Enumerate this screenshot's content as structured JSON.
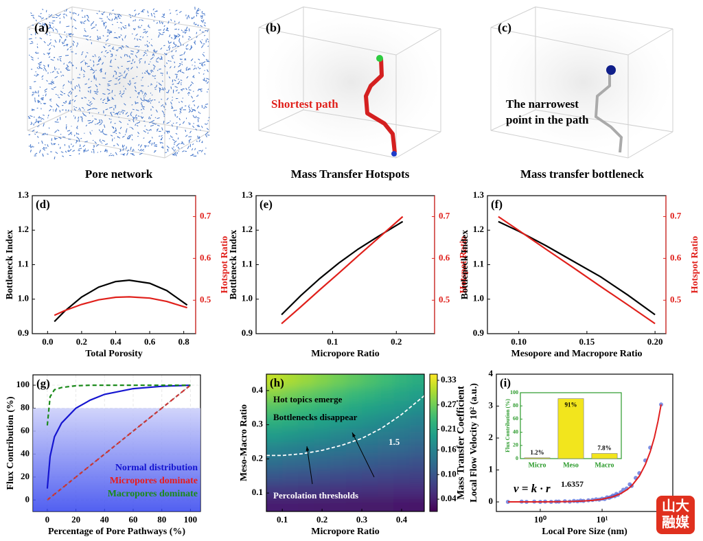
{
  "images": [
    {
      "label": "(a)",
      "caption": "Pore network"
    },
    {
      "label": "(b)",
      "caption": "Mass Transfer Hotspots",
      "annotation": "Shortest path"
    },
    {
      "label": "(c)",
      "caption": "Mass transfer bottleneck",
      "annotation": [
        "The narrowest",
        "point in the path"
      ]
    }
  ],
  "chart_data": [
    {
      "type": "line",
      "label": "(d)",
      "x_label": "Total Porosity",
      "y_label": "Bottleneck Index",
      "y2_label": "Hotspot Ratio",
      "y2_color": "#e0201b",
      "xlim": [
        -0.09,
        0.87
      ],
      "xticks": [
        {
          "value": 0,
          "label": "0.0"
        },
        0.2,
        0.4,
        0.6,
        0.8
      ],
      "ylim": [
        0.9,
        1.3
      ],
      "yticks": [
        0.9,
        {
          "value": 1,
          "label": "1.0"
        },
        1.1,
        1.2,
        1.3
      ],
      "y2lim": [
        0.42,
        0.75
      ],
      "y2ticks": [
        0.5,
        0.6,
        0.7
      ],
      "x": [
        0.04,
        0.1,
        0.2,
        0.3,
        0.4,
        0.48,
        0.6,
        0.7,
        0.82
      ],
      "series": [
        {
          "color": "#000000",
          "values": [
            0.935,
            0.965,
            1.006,
            1.035,
            1.051,
            1.055,
            1.046,
            1.025,
            0.983
          ]
        },
        {
          "color": "#e0201b",
          "axis": "y2",
          "values": [
            0.464,
            0.475,
            0.49,
            0.501,
            0.507,
            0.508,
            0.505,
            0.497,
            0.482
          ]
        }
      ]
    },
    {
      "type": "line",
      "label": "(e)",
      "x_label": "Micropore Ratio",
      "y_label": "Bottleneck Index",
      "y2_label": "Hotspot Ratio",
      "y2_color": "#e0201b",
      "xlim": [
        -0.02,
        0.26
      ],
      "xticks": [
        0.1,
        0.2
      ],
      "ylim": [
        0.9,
        1.3
      ],
      "yticks": [
        0.9,
        {
          "value": 1,
          "label": "1.0"
        },
        1.1,
        1.2,
        1.3
      ],
      "y2lim": [
        0.42,
        0.75
      ],
      "y2ticks": [
        0.5,
        0.6,
        0.7
      ],
      "x": [
        0.02,
        0.05,
        0.08,
        0.11,
        0.14,
        0.17,
        0.21
      ],
      "series": [
        {
          "color": "#000000",
          "values": [
            0.955,
            1.01,
            1.06,
            1.105,
            1.145,
            1.18,
            1.225
          ]
        },
        {
          "color": "#e0201b",
          "axis": "y2",
          "values": [
            0.444,
            0.484,
            0.525,
            0.565,
            0.606,
            0.646,
            0.7
          ]
        }
      ]
    },
    {
      "type": "line",
      "label": "(f)",
      "x_label": "Mesopore and Macropore  Ratio",
      "y_label": "Bottleneck Index",
      "y2_label": "Hotspot Ratio",
      "y2_color": "#e0201b",
      "xlim": [
        0.077,
        0.208
      ],
      "xticks": [
        {
          "value": 0.1,
          "label": "0.10"
        },
        0.15,
        {
          "value": 0.2,
          "label": "0.20"
        }
      ],
      "ylim": [
        0.9,
        1.3
      ],
      "yticks": [
        0.9,
        {
          "value": 1,
          "label": "1.0"
        },
        1.1,
        1.2,
        1.3
      ],
      "y2lim": [
        0.42,
        0.75
      ],
      "y2ticks": [
        0.5,
        0.6,
        0.7
      ],
      "x": [
        0.085,
        0.1,
        0.12,
        0.14,
        0.16,
        0.18,
        0.2
      ],
      "series": [
        {
          "color": "#000000",
          "values": [
            1.225,
            1.197,
            1.155,
            1.11,
            1.065,
            1.012,
            0.955
          ]
        },
        {
          "color": "#e0201b",
          "axis": "y2",
          "values": [
            0.7,
            0.667,
            0.622,
            0.578,
            0.533,
            0.489,
            0.444
          ]
        }
      ]
    },
    {
      "type": "line",
      "label": "(g)",
      "x_label": "Percentage of Pore Pathways (%)",
      "y_label": "Flux Contribution (%)",
      "xlim": [
        -10,
        107
      ],
      "xticks": [
        0,
        20,
        40,
        60,
        80,
        100
      ],
      "ylim": [
        -10,
        109
      ],
      "yticks": [
        0,
        20,
        40,
        60,
        80,
        100
      ],
      "grid": true,
      "shaded_ylim": [
        -10,
        80
      ],
      "legend": "lower right",
      "x": [
        0,
        2,
        5,
        10,
        20,
        30,
        40,
        60,
        80,
        100
      ],
      "series": [
        {
          "name": "Normal distribution",
          "color": "#1515d0",
          "style": "solid",
          "values": [
            10,
            38,
            55,
            67,
            80,
            87,
            92,
            97,
            99,
            100
          ]
        },
        {
          "name": "Micropores dominate",
          "color": "#e81c1c",
          "style": "dashed",
          "values": [
            0,
            2,
            5,
            10,
            20,
            30,
            40,
            60,
            80,
            100
          ]
        },
        {
          "name": "Macropores dominate",
          "color": "#1a8a1a",
          "style": "dashed",
          "values": [
            65,
            90,
            96,
            98,
            99.5,
            100,
            100,
            100,
            100,
            100
          ]
        },
        {
          "color": "#777777",
          "style": "dotted",
          "values": [
            0,
            2,
            5,
            10,
            20,
            30,
            40,
            60,
            80,
            100
          ]
        }
      ]
    },
    {
      "type": "heatmap",
      "label": "(h)",
      "x_label": "Micropore Ratio",
      "y_label": "Meso-Macro Ratio",
      "colorbar_label": "Mass Transfer Coefficient",
      "xlim": [
        0.06,
        0.457
      ],
      "xticks": [
        0.1,
        0.2,
        0.3,
        0.4
      ],
      "ylim": [
        0.046,
        0.448
      ],
      "yticks": [
        0.1,
        0.2,
        0.3,
        0.4
      ],
      "zlim": [
        0.01,
        0.345
      ],
      "zticks": [
        0.04,
        {
          "value": 0.1,
          "label": "0.10"
        },
        0.16,
        0.21,
        0.27,
        0.33
      ],
      "x": [
        0.08,
        0.12,
        0.16,
        0.2,
        0.24,
        0.28,
        0.32,
        0.36,
        0.4,
        0.44
      ],
      "y": [
        0.07,
        0.11,
        0.15,
        0.19,
        0.23,
        0.27,
        0.31,
        0.35,
        0.39,
        0.43
      ],
      "z": [
        [
          0.038,
          0.038,
          0.037,
          0.036,
          0.036,
          0.035,
          0.034,
          0.034,
          0.033,
          0.032
        ],
        [
          0.069,
          0.067,
          0.065,
          0.064,
          0.062,
          0.06,
          0.058,
          0.056,
          0.055,
          0.053
        ],
        [
          0.1,
          0.097,
          0.094,
          0.091,
          0.088,
          0.085,
          0.082,
          0.079,
          0.076,
          0.073
        ],
        [
          0.13,
          0.126,
          0.122,
          0.118,
          0.114,
          0.11,
          0.106,
          0.102,
          0.098,
          0.094
        ],
        [
          0.161,
          0.156,
          0.151,
          0.145,
          0.14,
          0.135,
          0.13,
          0.125,
          0.12,
          0.114
        ],
        [
          0.192,
          0.185,
          0.179,
          0.173,
          0.166,
          0.16,
          0.154,
          0.148,
          0.141,
          0.135
        ],
        [
          0.222,
          0.215,
          0.207,
          0.2,
          0.193,
          0.185,
          0.178,
          0.17,
          0.163,
          0.155
        ],
        [
          0.253,
          0.244,
          0.236,
          0.227,
          0.219,
          0.21,
          0.202,
          0.193,
          0.185,
          0.176
        ],
        [
          0.283,
          0.274,
          0.264,
          0.255,
          0.245,
          0.235,
          0.226,
          0.216,
          0.206,
          0.197
        ],
        [
          0.314,
          0.303,
          0.293,
          0.282,
          0.271,
          0.26,
          0.249,
          0.239,
          0.228,
          0.217
        ]
      ],
      "contour": {
        "label": "1.5",
        "x": [
          0.06,
          0.1,
          0.15,
          0.2,
          0.25,
          0.3,
          0.35,
          0.4,
          0.457
        ],
        "y": [
          0.21,
          0.21,
          0.215,
          0.225,
          0.24,
          0.26,
          0.29,
          0.33,
          0.385
        ]
      },
      "annotations": [
        "Hot topics emerge",
        "Bottlenecks disappear",
        "Percolation thresholds"
      ]
    },
    {
      "type": "scatter",
      "label": "(i)",
      "x_label": "Local Pore Size (nm)",
      "y_label": "Local Flow Velocity 10² (a.u.)",
      "xscale": "log",
      "xlim": [
        0.195,
        139
      ],
      "xticks": [
        {
          "value": 1,
          "label": "10⁰"
        },
        {
          "value": 10,
          "label": "10¹"
        }
      ],
      "ylim": [
        -0.3,
        4
      ],
      "yticks": [
        0,
        1,
        2,
        3,
        4
      ],
      "points_color": "#4a5fd6",
      "points": {
        "x": [
          0.3,
          0.5,
          0.6,
          0.8,
          1,
          1.2,
          1.5,
          1.8,
          2,
          2.5,
          3,
          3.5,
          4,
          4.5,
          5,
          6,
          7,
          8,
          9,
          10,
          11,
          12,
          13,
          14,
          15,
          16,
          17,
          18,
          20,
          22,
          25,
          28,
          30,
          35,
          40,
          50,
          60,
          90
        ],
        "y": [
          0,
          0.01,
          0,
          0.01,
          0,
          0.01,
          0,
          0.01,
          0.01,
          0.02,
          0.01,
          0.03,
          0.02,
          0.04,
          0.03,
          0.05,
          0.06,
          0.08,
          0.07,
          0.1,
          0.09,
          0.14,
          0.13,
          0.16,
          0.2,
          0.18,
          0.25,
          0.22,
          0.3,
          0.38,
          0.42,
          0.55,
          0.5,
          0.75,
          0.9,
          1.3,
          1.7,
          3.05
        ]
      },
      "fit": {
        "color": "#e02020",
        "x": [
          0.3,
          0.5,
          1,
          2,
          3,
          5,
          7,
          10,
          15,
          20,
          25,
          30,
          40,
          50,
          60,
          70,
          80,
          90
        ],
        "y": [
          0.0003,
          0.0006,
          0.0019,
          0.006,
          0.0117,
          0.027,
          0.047,
          0.084,
          0.163,
          0.26,
          0.375,
          0.5,
          0.81,
          1.17,
          1.57,
          2.02,
          2.52,
          3.05
        ]
      },
      "equation": {
        "text": "v = k · r",
        "exponent": "1.6357"
      },
      "inset": {
        "type": "bar",
        "y_label": "Flux Contribution (%)",
        "color": "#f2e51d",
        "axis_color": "#2a9a2a",
        "categories": [
          "Micro",
          "Meso",
          "Macro"
        ],
        "values": [
          1.2,
          91,
          7.8
        ],
        "value_labels": [
          "1.2%",
          "91%",
          "7.8%"
        ],
        "ylim": [
          0,
          100
        ],
        "yticks": [
          0,
          20,
          40,
          60,
          80,
          100
        ]
      }
    }
  ],
  "watermark": [
    "山大",
    "融媒"
  ]
}
